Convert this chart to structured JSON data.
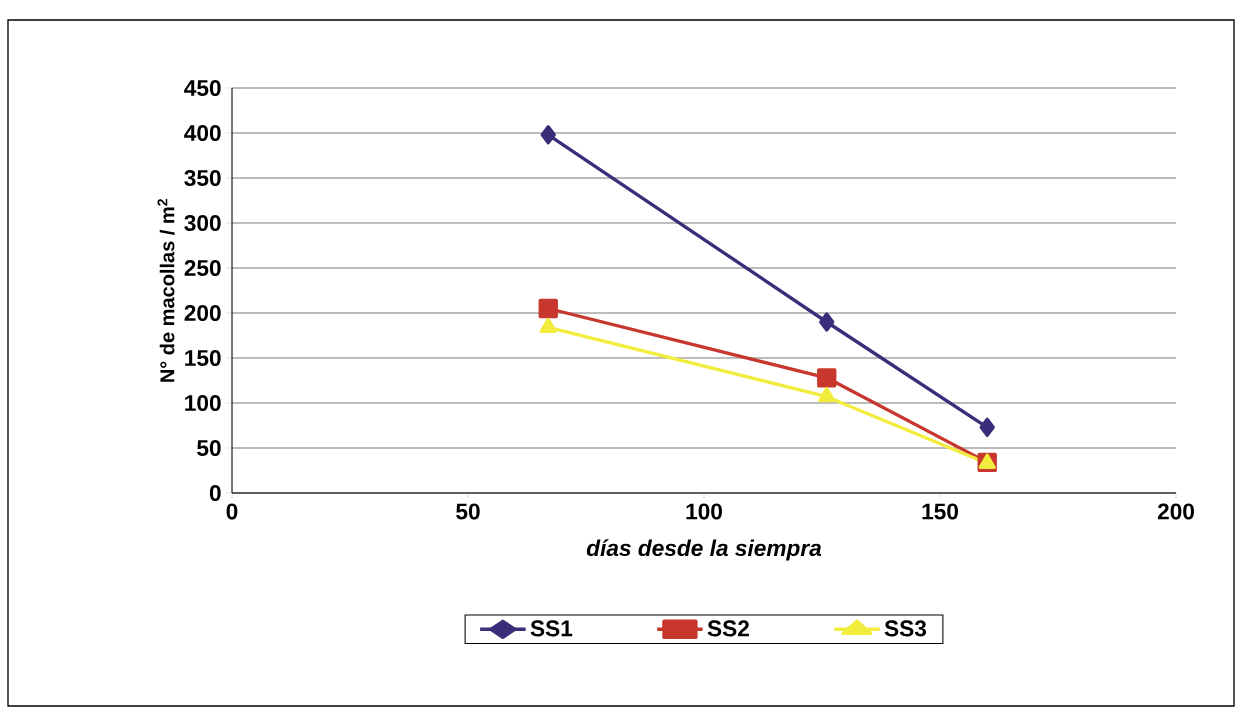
{
  "chart_data": {
    "type": "line",
    "xlabel": "días desde la siempra",
    "ylabel": "N° de macollas / m$^{2}$",
    "xlim": [
      0,
      200
    ],
    "xticks": [
      0,
      50,
      100,
      150,
      200
    ],
    "ylim": [
      0,
      450
    ],
    "yticks": [
      0,
      50,
      100,
      150,
      200,
      250,
      300,
      350,
      400,
      450
    ],
    "grid": "y",
    "legend": "bottom",
    "line_style": "solid",
    "series": [
      {
        "name": "SS1",
        "color": "#3b2d7a",
        "marker": "diamond",
        "x": [
          67,
          126,
          160
        ],
        "values": [
          398,
          190,
          73
        ]
      },
      {
        "name": "SS2",
        "color": "#c8372d",
        "marker": "square",
        "x": [
          67,
          126,
          160
        ],
        "values": [
          205,
          128,
          34
        ]
      },
      {
        "name": "SS3",
        "color": "#f2ec3c",
        "marker": "triangle",
        "x": [
          67,
          126,
          160
        ],
        "values": [
          184,
          107,
          33
        ]
      }
    ]
  }
}
